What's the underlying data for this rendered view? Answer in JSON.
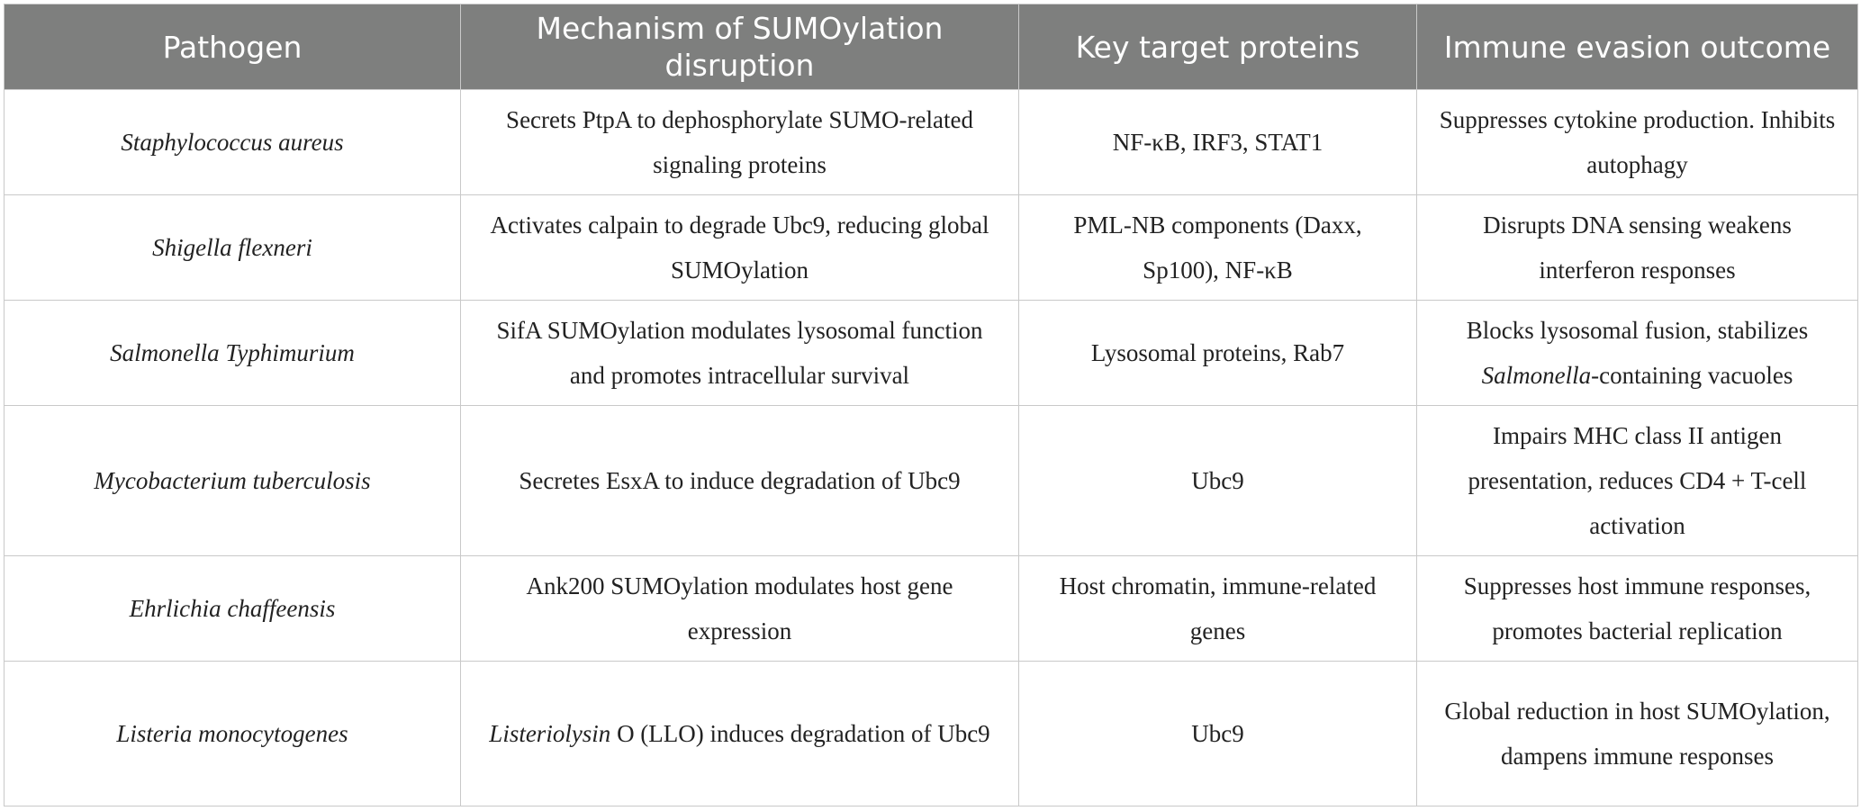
{
  "headers": [
    "Pathogen",
    "Mechanism of SUMOylation disruption",
    "Key target proteins",
    "Immune evasion outcome"
  ],
  "rows": [
    {
      "pathogen": "Staphylococcus aureus",
      "mechanism": "Secrets PtpA to dephosphorylate SUMO-related signaling proteins",
      "targets": "NF-κB, IRF3, STAT1",
      "outcome": "Suppresses cytokine production. Inhibits autophagy"
    },
    {
      "pathogen": "Shigella flexneri",
      "mechanism": "Activates calpain to degrade Ubc9, reducing global SUMOylation",
      "targets": "PML-NB components (Daxx, Sp100), NF-κB",
      "outcome": "Disrupts DNA sensing weakens interferon responses"
    },
    {
      "pathogen": "Salmonella Typhimurium",
      "mechanism": "SifA SUMOylation modulates lysosomal function and promotes intracellular survival",
      "targets": "Lysosomal proteins, Rab7",
      "outcome_prefix": "Blocks lysosomal fusion, stabilizes",
      "outcome_italic": "Salmonella",
      "outcome_suffix": "-containing vacuoles"
    },
    {
      "pathogen": "Mycobacterium tuberculosis",
      "mechanism": "Secretes EsxA to induce degradation of Ubc9",
      "targets": "Ubc9",
      "outcome": "Impairs MHC class II antigen presentation, reduces CD4 + T-cell activation"
    },
    {
      "pathogen": "Ehrlichia chaffeensis",
      "mechanism": "Ank200 SUMOylation modulates host gene expression",
      "targets": "Host chromatin, immune-related genes",
      "outcome": "Suppresses host immune responses, promotes bacterial replication"
    },
    {
      "pathogen": "Listeria monocytogenes",
      "mechanism_italic": "Listeriolysin",
      "mechanism_suffix": " O (LLO) induces degradation of Ubc9",
      "targets": "Ubc9",
      "outcome": "Global reduction in host SUMOylation, dampens immune responses"
    }
  ]
}
